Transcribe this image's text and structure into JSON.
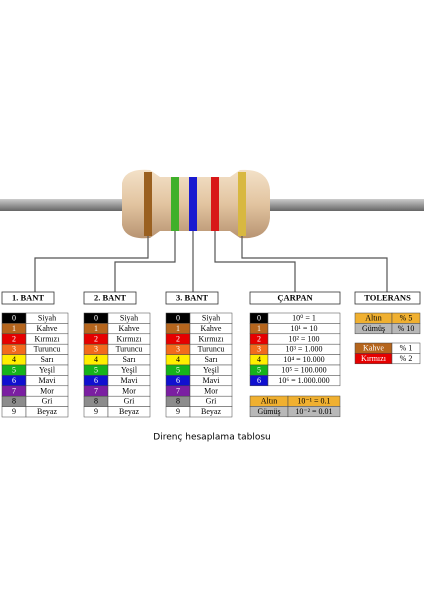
{
  "bands": [
    {
      "title": "1. BANT",
      "rows": [
        {
          "digit": "0",
          "name": "Siyah",
          "color": "#000000"
        },
        {
          "digit": "1",
          "name": "Kahve",
          "color": "#b5651d"
        },
        {
          "digit": "2",
          "name": "Kırmızı",
          "color": "#e60000"
        },
        {
          "digit": "3",
          "name": "Turuncu",
          "color": "#f26b1d"
        },
        {
          "digit": "4",
          "name": "Sarı",
          "color": "#ffee00"
        },
        {
          "digit": "5",
          "name": "Yeşil",
          "color": "#16b31b"
        },
        {
          "digit": "6",
          "name": "Mavi",
          "color": "#1010d0"
        },
        {
          "digit": "7",
          "name": "Mor",
          "color": "#7b1fa2"
        },
        {
          "digit": "8",
          "name": "Gri",
          "color": "#8c8c8c"
        },
        {
          "digit": "9",
          "name": "Beyaz",
          "color": "#ffffff"
        }
      ]
    },
    {
      "title": "2. BANT",
      "rows": [
        {
          "digit": "0",
          "name": "Siyah",
          "color": "#000000"
        },
        {
          "digit": "1",
          "name": "Kahve",
          "color": "#b5651d"
        },
        {
          "digit": "2",
          "name": "Kırmızı",
          "color": "#e60000"
        },
        {
          "digit": "3",
          "name": "Turuncu",
          "color": "#f26b1d"
        },
        {
          "digit": "4",
          "name": "Sarı",
          "color": "#ffee00"
        },
        {
          "digit": "5",
          "name": "Yeşil",
          "color": "#16b31b"
        },
        {
          "digit": "6",
          "name": "Mavi",
          "color": "#1010d0"
        },
        {
          "digit": "7",
          "name": "Mor",
          "color": "#7b1fa2"
        },
        {
          "digit": "8",
          "name": "Gri",
          "color": "#8c8c8c"
        },
        {
          "digit": "9",
          "name": "Beyaz",
          "color": "#ffffff"
        }
      ]
    },
    {
      "title": "3. BANT",
      "rows": [
        {
          "digit": "0",
          "name": "Siyah",
          "color": "#000000"
        },
        {
          "digit": "1",
          "name": "Kahve",
          "color": "#b5651d"
        },
        {
          "digit": "2",
          "name": "Kırmızı",
          "color": "#e60000"
        },
        {
          "digit": "3",
          "name": "Turuncu",
          "color": "#f26b1d"
        },
        {
          "digit": "4",
          "name": "Sarı",
          "color": "#ffee00"
        },
        {
          "digit": "5",
          "name": "Yeşil",
          "color": "#16b31b"
        },
        {
          "digit": "6",
          "name": "Mavi",
          "color": "#1010d0"
        },
        {
          "digit": "7",
          "name": "Mor",
          "color": "#7b1fa2"
        },
        {
          "digit": "8",
          "name": "Gri",
          "color": "#8c8c8c"
        },
        {
          "digit": "9",
          "name": "Beyaz",
          "color": "#ffffff"
        }
      ]
    }
  ],
  "multiplier": {
    "title": "ÇARPAN",
    "rows": [
      {
        "digit": "0",
        "value": "10⁰ = 1",
        "color": "#000000"
      },
      {
        "digit": "1",
        "value": "10¹ = 10",
        "color": "#b5651d"
      },
      {
        "digit": "2",
        "value": "10² = 100",
        "color": "#e60000"
      },
      {
        "digit": "3",
        "value": "10³ = 1.000",
        "color": "#f26b1d"
      },
      {
        "digit": "4",
        "value": "10⁴ = 10.000",
        "color": "#ffee00"
      },
      {
        "digit": "5",
        "value": "10⁵ = 100.000",
        "color": "#16b31b"
      },
      {
        "digit": "6",
        "value": "10⁶ = 1.000.000",
        "color": "#1010d0"
      }
    ],
    "extra": [
      {
        "name": "Altın",
        "value": "10⁻¹ = 0.1",
        "color": "#f0b030"
      },
      {
        "name": "Gümüş",
        "value": "10⁻² = 0.01",
        "color": "#b8b8b8"
      }
    ]
  },
  "tolerance": {
    "title": "TOLERANS",
    "rows": [
      {
        "name": "Altın",
        "value": "% 5",
        "color": "#f0b030"
      },
      {
        "name": "Gümüş",
        "value": "% 10",
        "color": "#b8b8b8"
      },
      {
        "name": "Kahve",
        "value": "% 1",
        "color": "#b5651d"
      },
      {
        "name": "Kırmızı",
        "value": "% 2",
        "color": "#e60000"
      }
    ]
  },
  "caption": "Direnç hesaplama tablosu"
}
